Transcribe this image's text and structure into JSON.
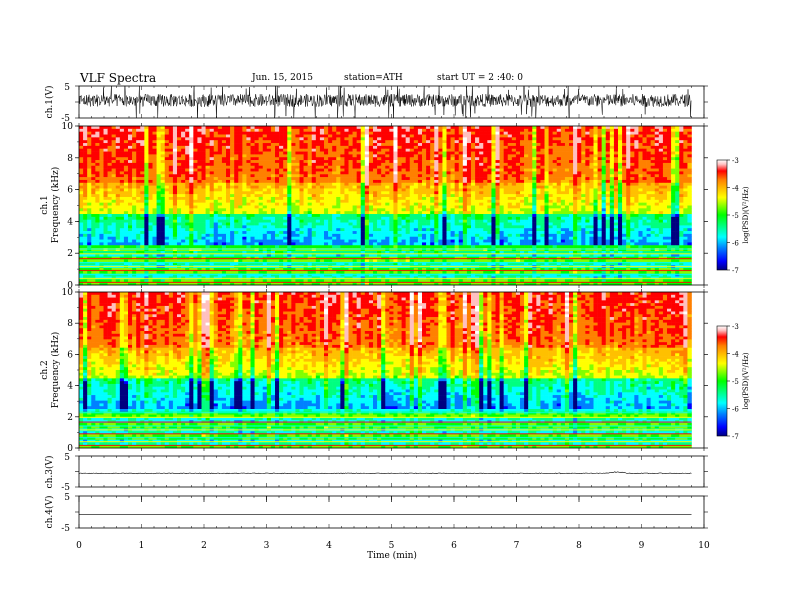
{
  "header": {
    "title": "VLF Spectra",
    "date": "Jun. 15, 2015",
    "station": "station=ATH",
    "start": "start UT = 2 :40: 0"
  },
  "colors": {
    "spectrogram_scale": [
      "#000080",
      "#0000ff",
      "#0080ff",
      "#00ffff",
      "#00ff80",
      "#00ff00",
      "#80ff00",
      "#ffff00",
      "#ffc000",
      "#ff8000",
      "#ff0000",
      "#ffc0c0",
      "#ffffff"
    ]
  },
  "chart_data": [
    {
      "type": "line",
      "panel": "ch1-waveform",
      "ylabel": "ch.1(V)",
      "yticks": [
        "5",
        "-5"
      ],
      "ylim": [
        -5,
        5
      ],
      "xlim": [
        0,
        10
      ],
      "description_values": {
        "baseline": 0.5,
        "noise_amplitude": 2.0
      }
    },
    {
      "type": "heatmap",
      "panel": "ch1-spectrogram",
      "ylabel": "ch.1\nFrequency (kHz)",
      "ylabel_line1": "ch.1",
      "ylabel_line2": "Frequency (kHz)",
      "yticks": [
        "0",
        "2",
        "4",
        "6",
        "8",
        "10"
      ],
      "ylim": [
        0,
        10
      ],
      "xlim": [
        0,
        10
      ],
      "colorbar": {
        "label": "log(PSD)(V²/Hz)",
        "ticks": [
          "-3",
          "-4",
          "-5",
          "-6",
          "-7"
        ],
        "range": [
          -7,
          -3
        ]
      }
    },
    {
      "type": "heatmap",
      "panel": "ch2-spectrogram",
      "ylabel_line1": "ch.2",
      "ylabel_line2": "Frequency (kHz)",
      "yticks": [
        "0",
        "2",
        "4",
        "6",
        "8",
        "10"
      ],
      "ylim": [
        0,
        10
      ],
      "xlim": [
        0,
        10
      ],
      "colorbar": {
        "label": "log(PSD)(V²/Hz)",
        "ticks": [
          "-3",
          "-4",
          "-5",
          "-6",
          "-7"
        ],
        "range": [
          -7,
          -3
        ]
      }
    },
    {
      "type": "line",
      "panel": "ch3-waveform",
      "ylabel": "ch.3(V)",
      "yticks": [
        "5",
        "-5"
      ],
      "ylim": [
        -5,
        5
      ],
      "xlim": [
        0,
        10
      ]
    },
    {
      "type": "line",
      "panel": "ch4-waveform",
      "ylabel": "ch.4(V)",
      "yticks": [
        "5",
        "-5"
      ],
      "ylim": [
        -5,
        5
      ],
      "xlim": [
        0,
        10
      ],
      "values_constant": -0.8
    }
  ],
  "xaxis": {
    "label": "Time (min)",
    "ticks": [
      "0",
      "1",
      "2",
      "3",
      "4",
      "5",
      "6",
      "7",
      "8",
      "9",
      "10"
    ],
    "data_end": 9.8
  }
}
